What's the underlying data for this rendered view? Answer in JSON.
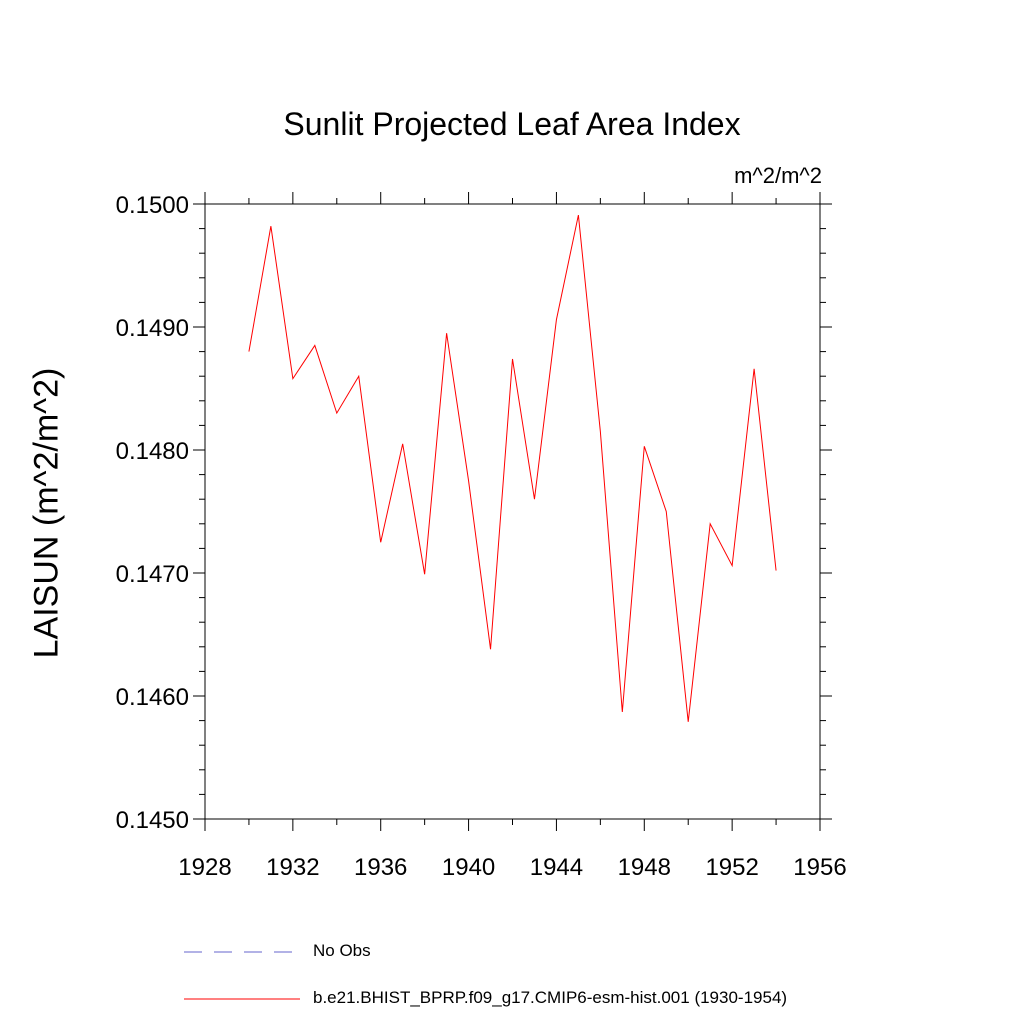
{
  "chart_data": {
    "type": "line",
    "title": "Sunlit Projected Leaf Area Index",
    "units": "m^2/m^2",
    "xlabel": "",
    "ylabel": "LAISUN  (m^2/m^2)",
    "xlim": [
      1928,
      1956
    ],
    "ylim": [
      0.145,
      0.15
    ],
    "x_ticks": [
      "1928",
      "1932",
      "1936",
      "1940",
      "1944",
      "1948",
      "1952",
      "1956"
    ],
    "y_ticks": [
      "0.1450",
      "0.1460",
      "0.1470",
      "0.1480",
      "0.1490",
      "0.1500"
    ],
    "series": [
      {
        "name": "b.e21.BHIST_BPRP.f09_g17.CMIP6-esm-hist.001 (1930-1954)",
        "color": "#ff0000",
        "style": "solid",
        "x": [
          1930,
          1931,
          1932,
          1933,
          1934,
          1935,
          1936,
          1937,
          1938,
          1939,
          1940,
          1941,
          1942,
          1943,
          1944,
          1945,
          1946,
          1947,
          1948,
          1949,
          1950,
          1951,
          1952,
          1953,
          1954
        ],
        "values": [
          0.1488,
          0.14982,
          0.14858,
          0.14885,
          0.1483,
          0.1486,
          0.14725,
          0.14805,
          0.14699,
          0.14895,
          0.14775,
          0.14638,
          0.14874,
          0.1476,
          0.14906,
          0.14991,
          0.14815,
          0.14587,
          0.14803,
          0.1475,
          0.14579,
          0.1474,
          0.14706,
          0.14866,
          0.14702
        ]
      }
    ],
    "legend": [
      {
        "label": "No Obs",
        "color": "#6666cc",
        "style": "dashed"
      },
      {
        "label": "b.e21.BHIST_BPRP.f09_g17.CMIP6-esm-hist.001 (1930-1954)",
        "color": "#ff0000",
        "style": "solid"
      }
    ]
  }
}
